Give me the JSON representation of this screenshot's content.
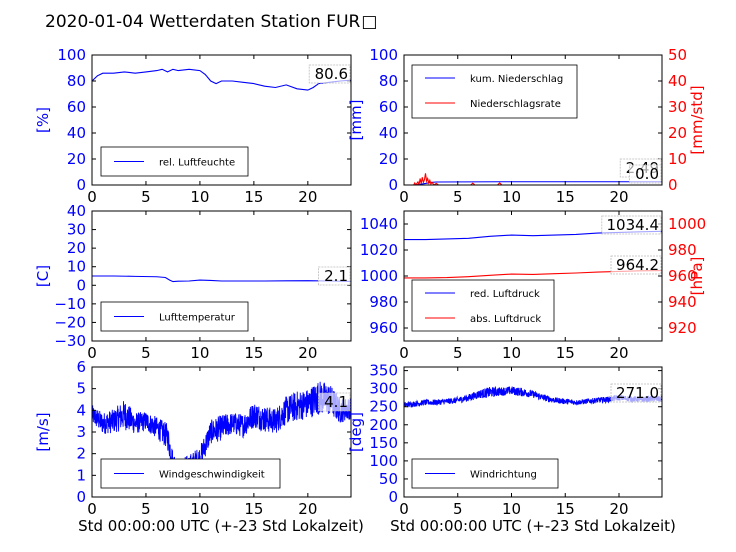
{
  "figure": {
    "title": "2020-01-04 Wetterdaten Station FUR",
    "title_tail_glyph": "□",
    "colors": {
      "blue": "#0000ff",
      "red": "#ff0000",
      "black": "#000000"
    }
  },
  "chart_data": [
    {
      "id": "humidity",
      "type": "line",
      "xlim": [
        0,
        24
      ],
      "xticks": [
        "0",
        "5",
        "10",
        "15",
        "20"
      ],
      "ylim": [
        0,
        100
      ],
      "yticks": [
        "0",
        "20",
        "40",
        "60",
        "80",
        "100"
      ],
      "ylabel": "[%]",
      "current_value": "80.6",
      "legend": [
        "rel. Luftfeuchte"
      ],
      "series": [
        {
          "name": "rel. Luftfeuchte",
          "color": "#0000ff",
          "x": [
            0,
            0.5,
            1,
            2,
            3,
            4,
            5,
            6,
            6.5,
            7,
            7.5,
            8,
            9,
            10,
            10.5,
            11,
            11.5,
            12,
            13,
            14,
            15,
            16,
            17,
            18,
            19,
            20,
            20.5,
            21,
            22,
            23,
            24
          ],
          "y": [
            80,
            84,
            86,
            86,
            87,
            86,
            87,
            88,
            89,
            87,
            89,
            88,
            89,
            88,
            85,
            80,
            78,
            80,
            80,
            79,
            78,
            76,
            75,
            77,
            74,
            73,
            75,
            78,
            79,
            80,
            80.6
          ]
        }
      ]
    },
    {
      "id": "precipitation",
      "type": "line",
      "xlim": [
        0,
        24
      ],
      "xticks": [
        "0",
        "5",
        "10",
        "15",
        "20"
      ],
      "ylim": [
        0,
        100
      ],
      "yticks": [
        "0",
        "20",
        "40",
        "60",
        "80",
        "100"
      ],
      "ylabel": "[mm]",
      "y2lim": [
        0,
        50
      ],
      "y2ticks": [
        "0",
        "10",
        "20",
        "30",
        "40",
        "50"
      ],
      "y2label": "[mm/std]",
      "current_values": [
        "2.49",
        "0.0"
      ],
      "legend": [
        "kum. Niederschlag",
        "Niederschlagsrate"
      ],
      "series": [
        {
          "name": "kum. Niederschlag",
          "color": "#0000ff",
          "axis": "left",
          "x": [
            0,
            1,
            1.5,
            2,
            2.5,
            3,
            6,
            9,
            12,
            24
          ],
          "y": [
            0,
            0,
            0.5,
            1.2,
            2.0,
            2.3,
            2.4,
            2.49,
            2.49,
            2.49
          ]
        },
        {
          "name": "Niederschlagsrate",
          "color": "#ff0000",
          "axis": "right",
          "x": [
            0,
            0.9,
            1.0,
            1.1,
            1.3,
            1.4,
            1.5,
            1.6,
            1.7,
            1.8,
            1.9,
            2.0,
            2.1,
            2.2,
            2.3,
            2.4,
            2.5,
            2.6,
            2.8,
            3.0,
            3.2,
            6.2,
            6.4,
            6.6,
            8.7,
            8.9,
            9.1,
            24
          ],
          "y": [
            0,
            0,
            0.8,
            0,
            1.2,
            0,
            2.5,
            0.5,
            3.0,
            1.0,
            2.0,
            4.5,
            1.5,
            2.5,
            0.8,
            1.8,
            0.4,
            1.0,
            0,
            0.6,
            0,
            0,
            0.7,
            0,
            0,
            0.8,
            0,
            0
          ]
        }
      ]
    },
    {
      "id": "temperature",
      "type": "line",
      "xlim": [
        0,
        24
      ],
      "xticks": [
        "0",
        "5",
        "10",
        "15",
        "20"
      ],
      "ylim": [
        -30,
        40
      ],
      "yticks": [
        "−30",
        "−20",
        "−10",
        "0",
        "10",
        "20",
        "30",
        "40"
      ],
      "ylabel": "[C]",
      "current_value": "2.1",
      "legend": [
        "Lufttemperatur"
      ],
      "series": [
        {
          "name": "Lufttemperatur",
          "color": "#0000ff",
          "x": [
            0,
            2,
            4,
            6,
            6.8,
            7.2,
            7.5,
            8,
            9,
            10,
            11,
            12,
            14,
            16,
            18,
            20,
            22,
            24
          ],
          "y": [
            5.0,
            5.0,
            4.8,
            4.6,
            4.2,
            2.8,
            2.0,
            2.2,
            2.3,
            2.8,
            2.6,
            2.3,
            2.3,
            2.3,
            2.4,
            2.5,
            2.3,
            2.1
          ]
        }
      ]
    },
    {
      "id": "pressure",
      "type": "line",
      "xlim": [
        0,
        24
      ],
      "xticks": [
        "0",
        "5",
        "10",
        "15",
        "20"
      ],
      "ylim": [
        950,
        1050
      ],
      "yticks": [
        "960",
        "980",
        "1000",
        "1020",
        "1040"
      ],
      "y2lim": [
        910,
        1010
      ],
      "y2ticks": [
        "920",
        "940",
        "960",
        "980",
        "1000"
      ],
      "y2label": "[hPa]",
      "current_values": [
        "1034.4",
        "964.2"
      ],
      "legend": [
        "red. Luftdruck",
        "abs. Luftdruck"
      ],
      "series": [
        {
          "name": "red. Luftdruck",
          "color": "#0000ff",
          "axis": "left",
          "x": [
            0,
            2,
            4,
            6,
            8,
            10,
            12,
            14,
            16,
            18,
            20,
            22,
            24
          ],
          "y": [
            1028,
            1028,
            1028.5,
            1029,
            1030.5,
            1031.5,
            1031,
            1031.5,
            1032,
            1033,
            1033.5,
            1034,
            1034.4
          ]
        },
        {
          "name": "abs. Luftdruck",
          "color": "#ff0000",
          "axis": "right",
          "x": [
            0,
            2,
            4,
            6,
            8,
            10,
            12,
            14,
            16,
            18,
            20,
            22,
            24
          ],
          "y": [
            958.5,
            958.5,
            958.8,
            959.5,
            960.5,
            961.5,
            961.2,
            961.8,
            962.3,
            963,
            963.5,
            964,
            964.2
          ]
        }
      ]
    },
    {
      "id": "windspeed",
      "type": "line",
      "xlim": [
        0,
        24
      ],
      "xticks": [
        "0",
        "5",
        "10",
        "15",
        "20"
      ],
      "ylim": [
        0,
        6
      ],
      "yticks": [
        "0",
        "1",
        "2",
        "3",
        "4",
        "5",
        "6"
      ],
      "ylabel": "[m/s]",
      "current_value": "4.1",
      "legend": [
        "Windgeschwindigkeit"
      ],
      "series": [
        {
          "name": "Windgeschwindigkeit",
          "color": "#0000ff",
          "x": [
            0,
            1,
            2,
            3,
            4,
            5,
            6,
            7,
            7.5,
            8,
            9,
            10,
            11,
            12,
            13,
            14,
            15,
            16,
            17,
            18,
            19,
            20,
            21,
            22,
            23,
            24
          ],
          "y": [
            3.8,
            3.4,
            3.5,
            3.8,
            3.4,
            3.5,
            3.2,
            2.8,
            1.6,
            1.3,
            1.5,
            1.8,
            3.0,
            3.2,
            3.4,
            3.3,
            3.8,
            3.6,
            3.5,
            4.0,
            4.2,
            4.3,
            4.6,
            4.5,
            4.0,
            4.1
          ],
          "noise": [
            0.45,
            0.5,
            0.55,
            0.7,
            0.5,
            0.45,
            0.5,
            0.6,
            0.55,
            0.45,
            0.45,
            0.55,
            0.55,
            0.6,
            0.5,
            0.55,
            0.6,
            0.6,
            0.6,
            0.65,
            0.7,
            0.7,
            0.8,
            0.75,
            0.6,
            0.5
          ]
        }
      ]
    },
    {
      "id": "winddirection",
      "type": "line",
      "xlim": [
        0,
        24
      ],
      "xticks": [
        "0",
        "5",
        "10",
        "15",
        "20"
      ],
      "ylim": [
        0,
        360
      ],
      "yticks": [
        "0",
        "50",
        "100",
        "150",
        "200",
        "250",
        "300",
        "350"
      ],
      "ylabel": "[deg]",
      "current_value": "271.0",
      "legend": [
        "Windrichtung"
      ],
      "series": [
        {
          "name": "Windrichtung",
          "color": "#0000ff",
          "x": [
            0,
            1,
            2,
            3,
            4,
            5,
            6,
            7,
            8,
            9,
            10,
            11,
            12,
            13,
            14,
            15,
            16,
            17,
            18,
            19,
            20,
            21,
            22,
            23,
            24
          ],
          "y": [
            255,
            258,
            262,
            262,
            265,
            268,
            275,
            285,
            290,
            292,
            295,
            290,
            285,
            275,
            268,
            265,
            262,
            265,
            268,
            270,
            275,
            272,
            270,
            272,
            271
          ],
          "noise": [
            8,
            8,
            8,
            8,
            8,
            9,
            10,
            12,
            15,
            12,
            12,
            12,
            10,
            9,
            8,
            8,
            7,
            7,
            8,
            8,
            8,
            8,
            7,
            8,
            8
          ]
        }
      ]
    }
  ],
  "xlabel": "Std 00:00:00 UTC (+-23 Std Lokalzeit)"
}
